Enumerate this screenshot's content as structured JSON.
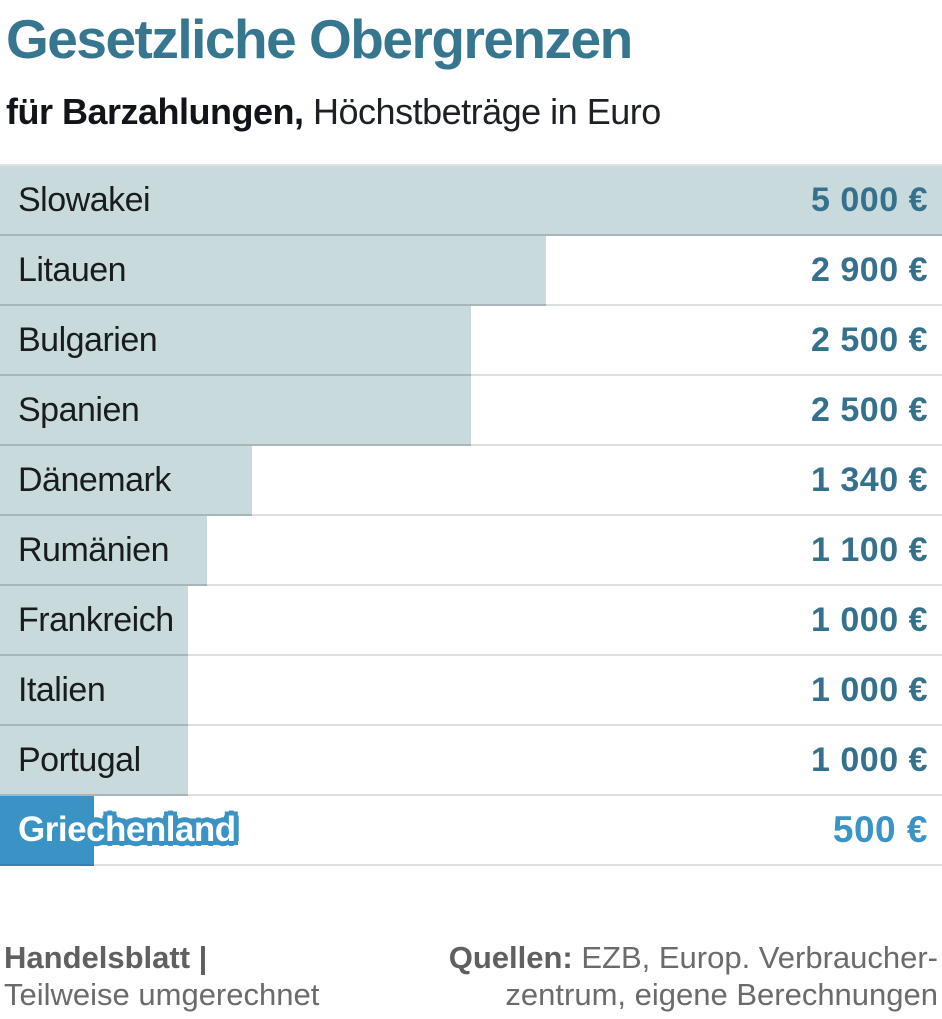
{
  "header": {
    "title": "Gesetzliche Obergrenzen",
    "subtitle_bold": "für Barzahlungen,",
    "subtitle_rest": " Höchstbeträge in Euro"
  },
  "chart_data": {
    "type": "bar",
    "orientation": "horizontal",
    "title": "Gesetzliche Obergrenzen für Barzahlungen",
    "xlabel": "Höchstbeträge in Euro",
    "xlim": [
      0,
      5000
    ],
    "grid": false,
    "legend": false,
    "categories": [
      "Slowakei",
      "Litauen",
      "Bulgarien",
      "Spanien",
      "Dänemark",
      "Rumänien",
      "Frankreich",
      "Italien",
      "Portugal",
      "Griechenland"
    ],
    "values": [
      5000,
      2900,
      2500,
      2500,
      1340,
      1100,
      1000,
      1000,
      1000,
      500
    ],
    "value_labels": [
      "5 000 €",
      "2 900 €",
      "2 500 €",
      "2 500 €",
      "1 340 €",
      "1 100 €",
      "1 000 €",
      "1 000 €",
      "1 000 €",
      "500 €"
    ],
    "highlight_category": "Griechenland"
  },
  "colors": {
    "title_text": "#37768f",
    "bar_fill": "#c9dadd",
    "bar_highlight_fill": "#3a93c4",
    "value_text": "#35718c",
    "value_highlight_text": "#3a94c6",
    "row_separator": "#dcdfe0",
    "footer_text": "#6b6b6b"
  },
  "footer": {
    "left_bold": "Handelsblatt |",
    "left_line2": "Teilweise umgerechnet",
    "right_bold": "Quellen:",
    "right_line1_rest": " EZB, Europ. Verbraucher-",
    "right_line2": "zentrum, eigene Berechnungen"
  }
}
